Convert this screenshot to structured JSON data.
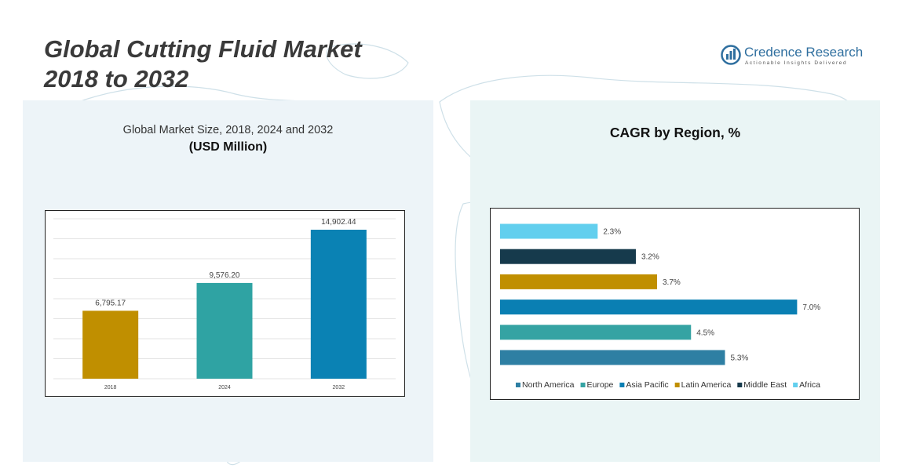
{
  "title_line1": "Global Cutting Fluid Market",
  "title_line2": "2018 to 2032",
  "logo": {
    "name": "Credence Research",
    "tagline": "Actionable Insights Delivered"
  },
  "chart_data": [
    {
      "type": "bar",
      "title": "Global Market Size, 2018, 2024 and 2032",
      "subtitle": "(USD Million)",
      "categories": [
        "2018",
        "2024",
        "2032"
      ],
      "values": [
        6795.17,
        9576.2,
        14902.44
      ],
      "value_labels": [
        "6,795.17",
        "9,576.20",
        "14,902.44"
      ],
      "colors": [
        "#c08f00",
        "#2fa3a3",
        "#0a82b4"
      ],
      "ylim": [
        0,
        16000
      ],
      "grid": true
    },
    {
      "type": "bar",
      "orientation": "horizontal",
      "title": "CAGR by Region, %",
      "categories": [
        "North America",
        "Europe",
        "Asia Pacific",
        "Latin America",
        "Middle East",
        "Africa"
      ],
      "values": [
        5.3,
        4.5,
        7.0,
        3.7,
        3.2,
        2.3
      ],
      "value_labels": [
        "5.3%",
        "4.5%",
        "7.0%",
        "3.7%",
        "3.2%",
        "2.3%"
      ],
      "colors": [
        "#2e7fa3",
        "#35a3a3",
        "#0a7fb3",
        "#c08f00",
        "#163a4c",
        "#62cfee"
      ],
      "xlim": [
        0,
        7.4
      ],
      "legend": "bottom"
    }
  ]
}
